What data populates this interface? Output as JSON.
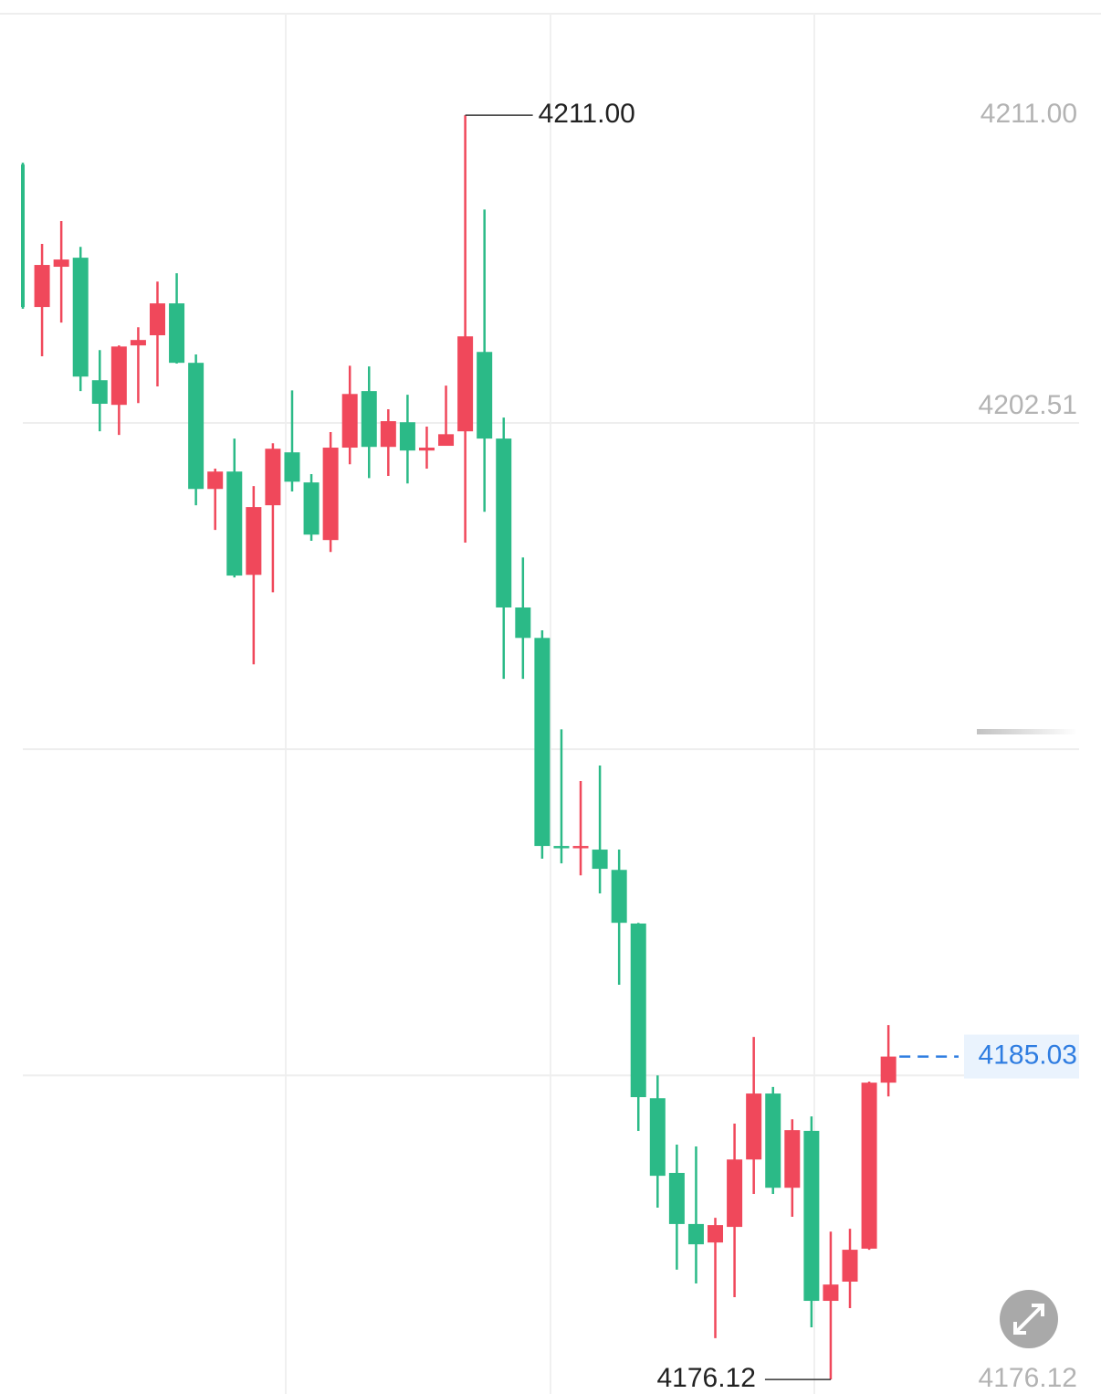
{
  "chart_data": {
    "type": "candlestick",
    "up_color": "#f0485b",
    "down_color": "#2bba87",
    "ylim": [
      4175.72,
      4214.18
    ],
    "yticks": [
      {
        "value": 4211,
        "label": "4211.00"
      },
      {
        "value": 4202.51,
        "label": "4202.51"
      },
      {
        "value": 4176.12,
        "label": "4176.12"
      }
    ],
    "gridlines": [
      4202.51,
      4193.51,
      4184.51
    ],
    "open": [
      4209.64,
      4205.71,
      4206.82,
      4207.07,
      4203.69,
      4203.01,
      4204.65,
      4204.93,
      4205.81,
      4204.17,
      4200.69,
      4201.17,
      4198.32,
      4200.24,
      4201.7,
      4200.87,
      4199.28,
      4201.83,
      4203.39,
      4201.85,
      4202.53,
      4201.75,
      4201.88,
      4202.28,
      4204.47,
      4202.08,
      4197.42,
      4196.58,
      4190.84,
      4190.79,
      4190.74,
      4190.18,
      4188.7,
      4183.88,
      4181.82,
      4180.41,
      4179.9,
      4180.33,
      4182.19,
      4184.01,
      4181.41,
      4182.98,
      4178.29,
      4178.82,
      4179.73,
      4184.31
    ],
    "high": [
      4209.69,
      4207.45,
      4208.08,
      4207.37,
      4204.52,
      4204.65,
      4205.15,
      4206.41,
      4206.64,
      4204.4,
      4201.25,
      4202.08,
      4200.77,
      4201.95,
      4203.41,
      4201.1,
      4202.26,
      4204.09,
      4204.07,
      4202.89,
      4203.29,
      4202.41,
      4203.54,
      4211.0,
      4208.4,
      4202.66,
      4198.8,
      4196.79,
      4194.06,
      4192.63,
      4193.06,
      4190.74,
      4188.72,
      4184.51,
      4182.6,
      4182.55,
      4180.58,
      4183.18,
      4185.57,
      4184.19,
      4183.3,
      4183.38,
      4180.2,
      4180.28,
      4184.34,
      4185.9
    ],
    "low": [
      4205.66,
      4204.35,
      4205.28,
      4203.39,
      4202.28,
      4202.18,
      4203.06,
      4203.52,
      4204.15,
      4200.24,
      4199.56,
      4198.25,
      4195.85,
      4197.84,
      4200.62,
      4199.26,
      4198.95,
      4201.37,
      4200.99,
      4201.05,
      4200.84,
      4201.25,
      4201.88,
      4199.21,
      4200.06,
      4195.45,
      4195.45,
      4190.49,
      4190.36,
      4190.03,
      4189.53,
      4187.01,
      4182.98,
      4180.86,
      4179.15,
      4178.77,
      4177.26,
      4178.39,
      4181.24,
      4181.24,
      4180.61,
      4177.56,
      4176.12,
      4178.09,
      4179.7,
      4183.93
    ],
    "close": [
      4205.71,
      4206.87,
      4207.02,
      4203.79,
      4203.04,
      4204.62,
      4204.8,
      4205.81,
      4204.17,
      4200.69,
      4201.17,
      4198.3,
      4200.19,
      4201.8,
      4200.89,
      4199.43,
      4201.83,
      4203.31,
      4201.85,
      4202.56,
      4201.75,
      4201.83,
      4202.2,
      4204.9,
      4202.08,
      4197.42,
      4196.58,
      4190.84,
      4190.79,
      4190.84,
      4190.21,
      4188.72,
      4183.91,
      4181.74,
      4180.41,
      4179.85,
      4180.38,
      4182.19,
      4184.01,
      4181.41,
      4183.0,
      4178.29,
      4178.74,
      4179.7,
      4184.31,
      4185.03
    ],
    "annotations": {
      "max": {
        "value": 4211,
        "label": "4211.00"
      },
      "min": {
        "value": 4176.12,
        "label": "4176.12"
      },
      "last": {
        "value": 4185.03,
        "label": "4185.03",
        "color": "#2f7de1"
      }
    }
  }
}
